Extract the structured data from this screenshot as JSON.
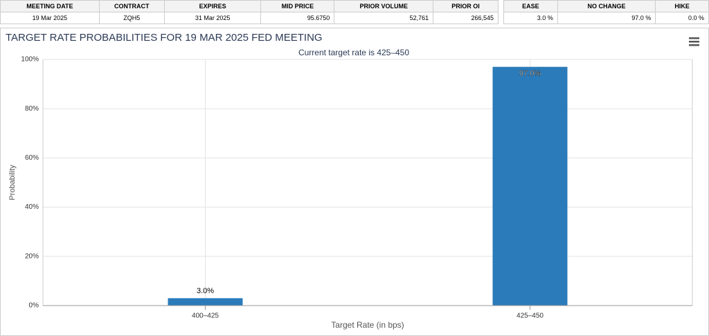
{
  "contract_table": {
    "headers": [
      "MEETING DATE",
      "CONTRACT",
      "EXPIRES",
      "MID PRICE",
      "PRIOR VOLUME",
      "PRIOR OI"
    ],
    "row": [
      "19 Mar 2025",
      "ZQH5",
      "31 Mar 2025",
      "95.6750",
      "52,761",
      "266,545"
    ]
  },
  "probability_table": {
    "headers": [
      "EASE",
      "NO CHANGE",
      "HIKE"
    ],
    "row": [
      "3.0 %",
      "97.0 %",
      "0.0 %"
    ]
  },
  "chart_data": {
    "type": "bar",
    "title": "TARGET RATE PROBABILITIES FOR 19 MAR 2025 FED MEETING",
    "subtitle": "Current target rate is 425–450",
    "x_label": "Target Rate (in bps)",
    "y_label": "Probability",
    "categories": [
      "400–425",
      "425–450"
    ],
    "values": [
      3.0,
      97.0
    ],
    "value_labels": [
      "3.0%",
      "97.0%"
    ],
    "color": "#2b7bba",
    "ylim": [
      0,
      100
    ],
    "yticks": [
      {
        "value": 0,
        "label": "0%"
      },
      {
        "value": 20,
        "label": "20%"
      },
      {
        "value": 40,
        "label": "40%"
      },
      {
        "value": 60,
        "label": "60%"
      },
      {
        "value": 80,
        "label": "80%"
      },
      {
        "value": 100,
        "label": "100%"
      }
    ],
    "grid": true
  }
}
